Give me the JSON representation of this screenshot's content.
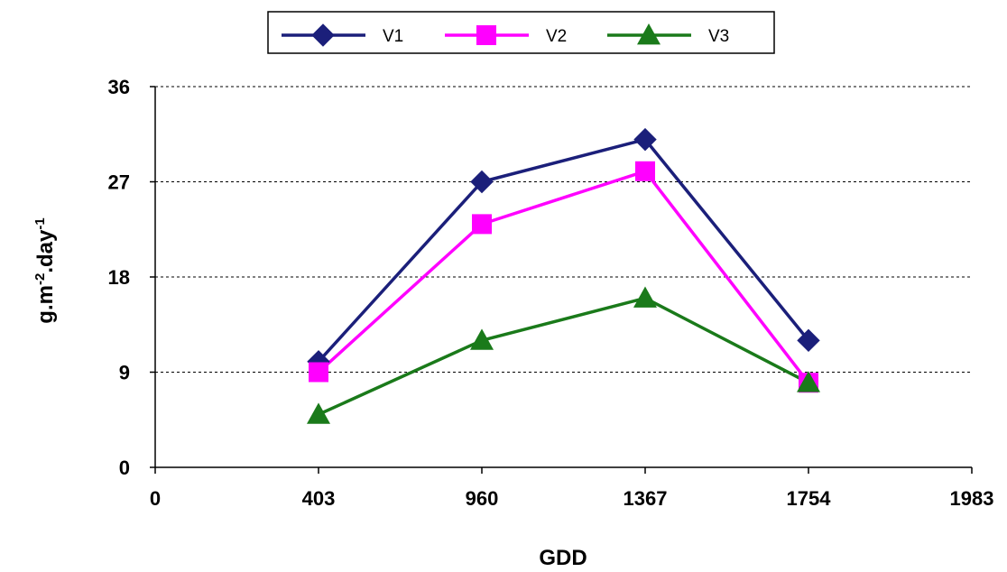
{
  "chart_data": {
    "type": "line",
    "title": "",
    "xlabel": "GDD",
    "ylabel_base": "g.m",
    "ylabel_sup1": "-2",
    "ylabel_mid": ".day",
    "ylabel_sup2": "-1",
    "x_ticks": [
      "0",
      "403",
      "960",
      "1367",
      "1754",
      "1983"
    ],
    "x_values": [
      403,
      960,
      1367,
      1754
    ],
    "xlim": [
      0,
      1983
    ],
    "x_scale": "category",
    "y_ticks": [
      0,
      9,
      18,
      27,
      36
    ],
    "ylim": [
      0,
      36
    ],
    "grid": "horizontal-dashed",
    "legend_position": "top-center",
    "series": [
      {
        "name": "V1",
        "marker": "diamond",
        "color": "#1b1f7a",
        "values": [
          10,
          27,
          31,
          12
        ]
      },
      {
        "name": "V2",
        "marker": "square",
        "color": "#ff00ff",
        "values": [
          9,
          23,
          28,
          8
        ]
      },
      {
        "name": "V3",
        "marker": "triangle",
        "color": "#1a7a1a",
        "values": [
          5,
          12,
          16,
          8
        ]
      }
    ]
  }
}
